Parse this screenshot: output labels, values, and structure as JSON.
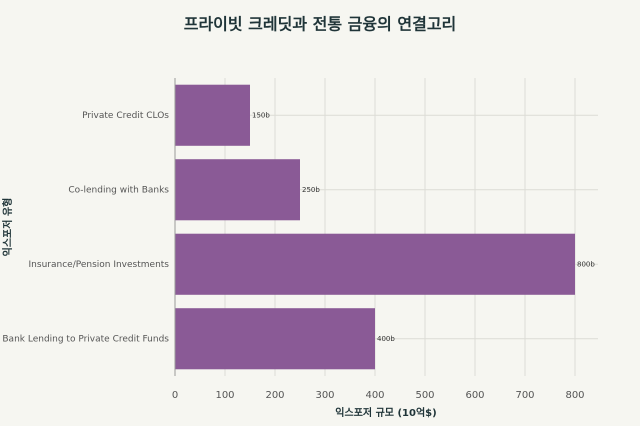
{
  "chart_data": {
    "type": "bar",
    "orientation": "horizontal",
    "title": "프라이빗 크레딧과 전통 금융의 연결고리",
    "x_label": "익스포저 규모 (10억$)",
    "y_label": "익스포저 유형",
    "categories": [
      "Private Credit CLOs",
      "Co-lending with Banks",
      "Insurance/Pension Investments",
      "Bank Lending to Private Credit Funds"
    ],
    "values": [
      150,
      250,
      800,
      400
    ],
    "value_labels": [
      "150b",
      "250b",
      "800b",
      "400b"
    ],
    "color": "#8a5a96",
    "xlim": [
      0,
      846
    ],
    "xticks": [
      0,
      100,
      200,
      300,
      400,
      500,
      600,
      700,
      800
    ],
    "grid": true
  }
}
